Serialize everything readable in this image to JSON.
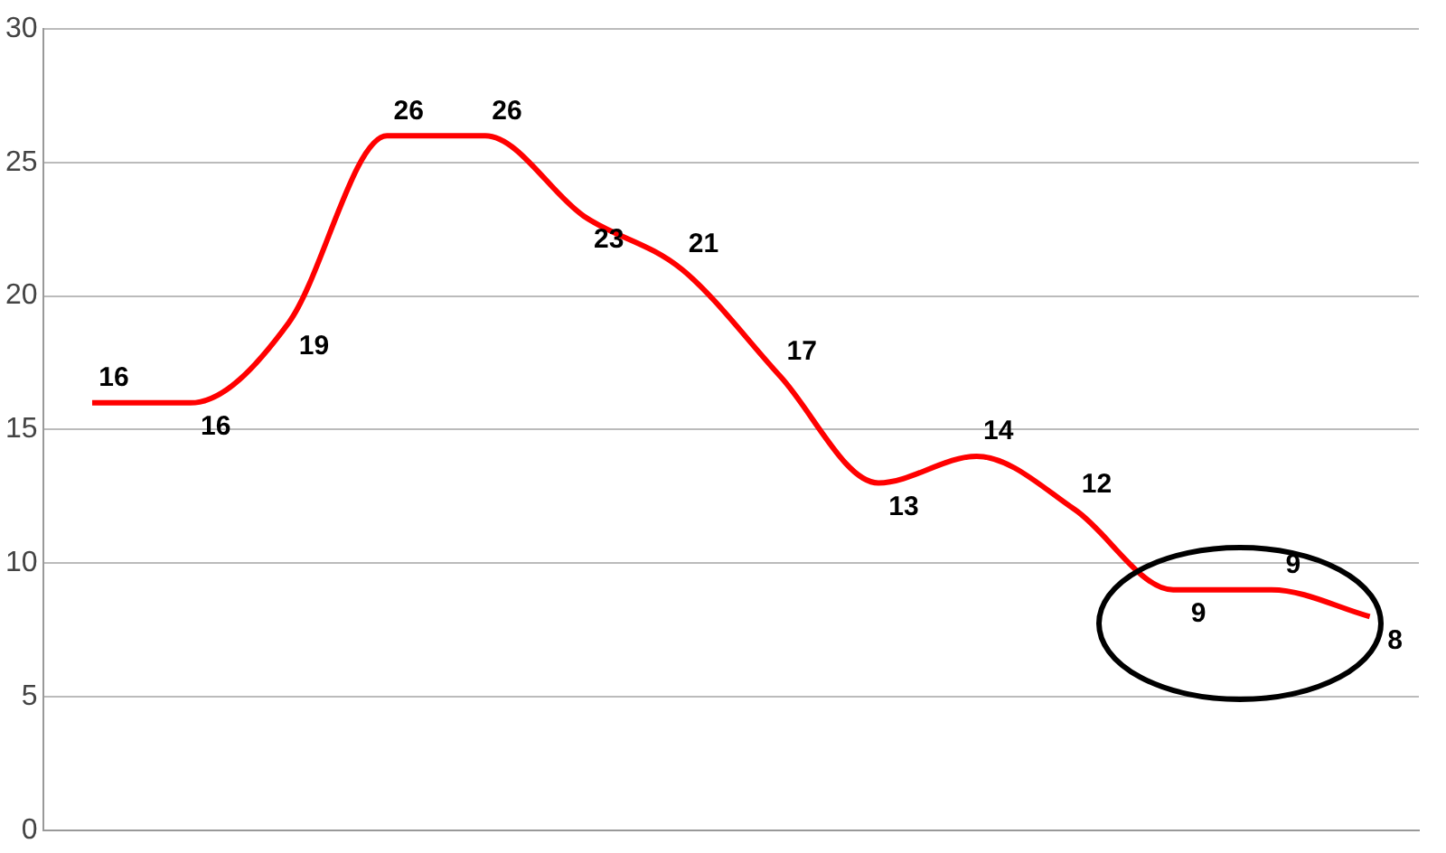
{
  "chart_data": {
    "type": "line",
    "categories": [
      null,
      null,
      null,
      null,
      null,
      null,
      null,
      null,
      null,
      null,
      null,
      null,
      null,
      null
    ],
    "series": [
      {
        "color": "#ff0000",
        "values": [
          16,
          16,
          19,
          26,
          26,
          23,
          21,
          17,
          13,
          14,
          12,
          9,
          9,
          8
        ]
      }
    ],
    "ylim": [
      0,
      30
    ],
    "yticks": [
      0,
      5,
      10,
      15,
      20,
      25,
      30
    ],
    "grid": "y",
    "legend": false,
    "marker": "none",
    "line_style": "solid",
    "data_labels": true
  }
}
